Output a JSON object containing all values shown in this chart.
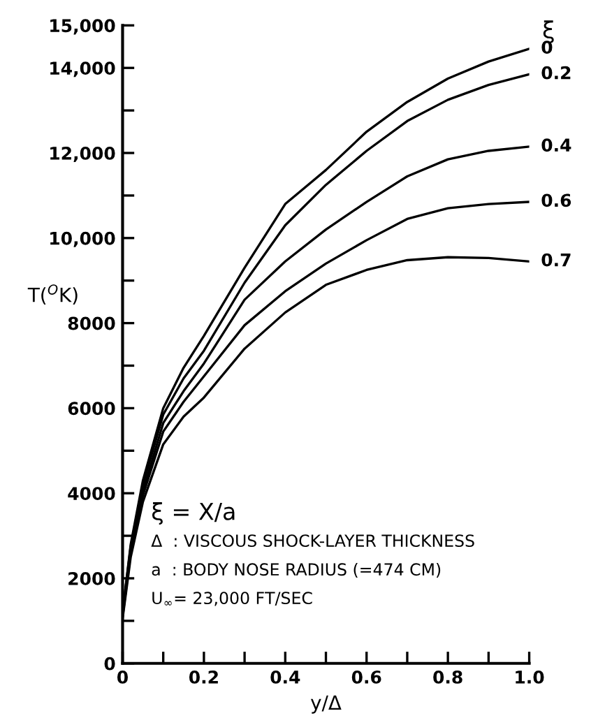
{
  "chart_data": {
    "type": "line",
    "xlabel": "y/Δ",
    "ylabel": "T($^{O}$K)",
    "legend_title": "ξ",
    "x": [
      0,
      0.02,
      0.05,
      0.1,
      0.15,
      0.2,
      0.3,
      0.4,
      0.5,
      0.6,
      0.7,
      0.8,
      0.9,
      1.0
    ],
    "series": [
      {
        "name": "0",
        "color": "#000000",
        "values": [
          1200,
          2800,
          4300,
          6000,
          6950,
          7700,
          9300,
          10800,
          11600,
          12500,
          13200,
          13750,
          14150,
          14450
        ]
      },
      {
        "name": "0.2",
        "color": "#000000",
        "values": [
          1200,
          2750,
          4200,
          5850,
          6700,
          7350,
          8950,
          10300,
          11250,
          12050,
          12750,
          13250,
          13600,
          13850
        ]
      },
      {
        "name": "0.4",
        "color": "#000000",
        "values": [
          1150,
          2650,
          4050,
          5650,
          6400,
          7050,
          8550,
          9450,
          10200,
          10850,
          11450,
          11850,
          12050,
          12150
        ]
      },
      {
        "name": "0.6",
        "color": "#000000",
        "values": [
          1100,
          2600,
          3950,
          5450,
          6150,
          6750,
          7950,
          8750,
          9400,
          9950,
          10450,
          10700,
          10800,
          10850
        ]
      },
      {
        "name": "0.7",
        "color": "#000000",
        "values": [
          1050,
          2500,
          3800,
          5150,
          5800,
          6250,
          7400,
          8250,
          8900,
          9250,
          9480,
          9550,
          9530,
          9450
        ]
      }
    ],
    "xlim": [
      0,
      1.0
    ],
    "xticks": [
      0,
      {
        "value": 0.1,
        "label": null
      },
      0.2,
      {
        "value": 0.3,
        "label": null
      },
      0.4,
      {
        "value": 0.5,
        "label": null
      },
      0.6,
      {
        "value": 0.7,
        "label": null
      },
      0.8,
      {
        "value": 0.9,
        "label": null
      },
      {
        "value": 1.0,
        "label": "1.0"
      }
    ],
    "ylim": [
      0,
      15000
    ],
    "yticks": [
      0,
      {
        "value": 1000,
        "label": null
      },
      2000,
      {
        "value": 3000,
        "label": null
      },
      4000,
      {
        "value": 5000,
        "label": null
      },
      6000,
      {
        "value": 7000,
        "label": null
      },
      8000,
      {
        "value": 9000,
        "label": null
      },
      {
        "value": 10000,
        "label": "10,000"
      },
      {
        "value": 11000,
        "label": null
      },
      {
        "value": 12000,
        "label": "12,000"
      },
      {
        "value": 13000,
        "label": null
      },
      {
        "value": 14000,
        "label": "14,000"
      },
      {
        "value": 15000,
        "label": "15,000"
      }
    ],
    "annotations": [
      "ξ = X/a",
      "Δ  : VISCOUS SHOCK-LAYER THICKNESS",
      "a  : BODY NOSE RADIUS (=474 CM)",
      "U$_{∞}$= 23,000 FT/SEC"
    ],
    "grid": false,
    "legend": false,
    "marker": "none",
    "line_style": "solid"
  }
}
